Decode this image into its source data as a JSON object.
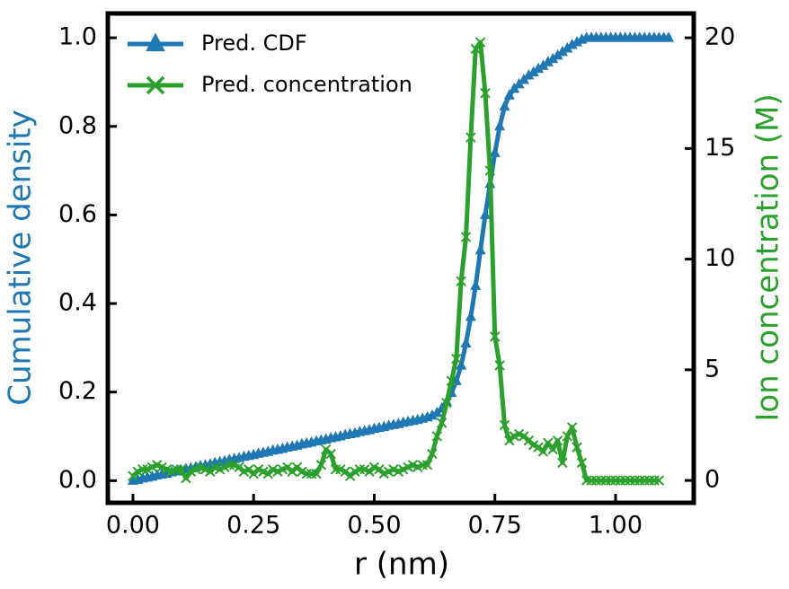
{
  "chart_data": {
    "type": "line",
    "xlabel": "r (nm)",
    "ylabel": "Cumulative density",
    "y2label": "Ion concentration (M)",
    "x": [
      0,
      0.01,
      0.02,
      0.03,
      0.04,
      0.05,
      0.06,
      0.07,
      0.08,
      0.09,
      0.1,
      0.11,
      0.12,
      0.13,
      0.14,
      0.15,
      0.16,
      0.17,
      0.18,
      0.19,
      0.2,
      0.21,
      0.22,
      0.23,
      0.24,
      0.25,
      0.26,
      0.27,
      0.28,
      0.29,
      0.3,
      0.31,
      0.32,
      0.33,
      0.34,
      0.35,
      0.36,
      0.37,
      0.38,
      0.39,
      0.4,
      0.41,
      0.42,
      0.43,
      0.44,
      0.45,
      0.46,
      0.47,
      0.48,
      0.49,
      0.5,
      0.51,
      0.52,
      0.53,
      0.54,
      0.55,
      0.56,
      0.57,
      0.58,
      0.59,
      0.6,
      0.61,
      0.62,
      0.63,
      0.64,
      0.65,
      0.66,
      0.67,
      0.68,
      0.69,
      0.7,
      0.71,
      0.72,
      0.73,
      0.74,
      0.75,
      0.76,
      0.77,
      0.78,
      0.79,
      0.8,
      0.81,
      0.82,
      0.83,
      0.84,
      0.85,
      0.86,
      0.87,
      0.88,
      0.89,
      0.9,
      0.91,
      0.92,
      0.93,
      0.94,
      0.95,
      0.96,
      0.97,
      0.98,
      0.99,
      1.0,
      1.01,
      1.02,
      1.03,
      1.04,
      1.05,
      1.06,
      1.07,
      1.08,
      1.09,
      1.1,
      1.11
    ],
    "series": [
      {
        "name": "Pred. CDF",
        "color": "#1f77b4",
        "marker": "triangle",
        "values": [
          0,
          0.002,
          0.005,
          0.007,
          0.009,
          0.012,
          0.014,
          0.016,
          0.019,
          0.021,
          0.023,
          0.026,
          0.028,
          0.03,
          0.033,
          0.035,
          0.037,
          0.04,
          0.042,
          0.044,
          0.047,
          0.049,
          0.051,
          0.054,
          0.056,
          0.058,
          0.061,
          0.063,
          0.065,
          0.068,
          0.07,
          0.072,
          0.075,
          0.077,
          0.079,
          0.082,
          0.084,
          0.086,
          0.089,
          0.091,
          0.093,
          0.096,
          0.098,
          0.1,
          0.103,
          0.105,
          0.107,
          0.11,
          0.112,
          0.114,
          0.117,
          0.119,
          0.121,
          0.124,
          0.126,
          0.128,
          0.131,
          0.133,
          0.135,
          0.137,
          0.14,
          0.143,
          0.147,
          0.153,
          0.163,
          0.178,
          0.198,
          0.225,
          0.26,
          0.31,
          0.37,
          0.44,
          0.52,
          0.6,
          0.67,
          0.74,
          0.8,
          0.845,
          0.87,
          0.885,
          0.895,
          0.905,
          0.915,
          0.922,
          0.93,
          0.937,
          0.945,
          0.952,
          0.96,
          0.968,
          0.976,
          0.984,
          0.99,
          0.996,
          1,
          1,
          1,
          1,
          1,
          1,
          1,
          1,
          1,
          1,
          1,
          1,
          1,
          1,
          1,
          1,
          1,
          1
        ]
      },
      {
        "name": "Pred. concentration",
        "color": "#2ca02c",
        "marker": "x",
        "axis": "y2",
        "values": [
          0.2,
          0.4,
          0.5,
          0.5,
          0.6,
          0.7,
          0.6,
          0.5,
          0.4,
          0.5,
          0.5,
          0.1,
          0.4,
          0.5,
          0.6,
          0.5,
          0.4,
          0.6,
          0.5,
          0.6,
          0.7,
          0.7,
          0.6,
          0.4,
          0.5,
          0.3,
          0.5,
          0.4,
          0.3,
          0.5,
          0.4,
          0.5,
          0.6,
          0.4,
          0.6,
          0.4,
          0.3,
          0.3,
          0.3,
          0.7,
          1.4,
          1.2,
          0.5,
          0.5,
          0.4,
          0.2,
          0.4,
          0.5,
          0.5,
          0.4,
          0.6,
          0.5,
          0.3,
          0.4,
          0.5,
          0.4,
          0.5,
          0.6,
          0.7,
          0.6,
          0.7,
          0.7,
          1.2,
          2.0,
          2.6,
          3.5,
          4.5,
          5.5,
          9,
          11,
          15.5,
          19.5,
          19.8,
          17.5,
          14,
          6.5,
          5.2,
          2.5,
          1.8,
          2.0,
          2.1,
          2.0,
          1.8,
          1.6,
          1.5,
          1.3,
          1.7,
          1.4,
          1.8,
          0.8,
          2.0,
          2.4,
          1.5,
          0.8,
          0,
          0,
          0,
          0,
          0,
          0,
          0,
          0,
          0,
          0,
          0,
          0,
          0,
          0,
          0,
          0,
          null,
          null
        ]
      }
    ],
    "xlim": [
      -0.052,
      1.162
    ],
    "xticks": [
      {
        "value": 0,
        "label": "0.00"
      },
      {
        "value": 0.25,
        "label": "0.25"
      },
      {
        "value": 0.5,
        "label": "0.50"
      },
      {
        "value": 0.75,
        "label": "0.75"
      },
      {
        "value": 1,
        "label": "1.00"
      }
    ],
    "ylim": [
      -0.05,
      1.055
    ],
    "yticks": [
      {
        "value": 0,
        "label": "0.0"
      },
      {
        "value": 0.2,
        "label": "0.2"
      },
      {
        "value": 0.4,
        "label": "0.4"
      },
      {
        "value": 0.6,
        "label": "0.6"
      },
      {
        "value": 0.8,
        "label": "0.8"
      },
      {
        "value": 1,
        "label": "1.0"
      }
    ],
    "y2lim": [
      -1.01,
      21.1
    ],
    "y2ticks": [
      0,
      5,
      10,
      15,
      20
    ],
    "legend": "upper left",
    "grid": false
  }
}
